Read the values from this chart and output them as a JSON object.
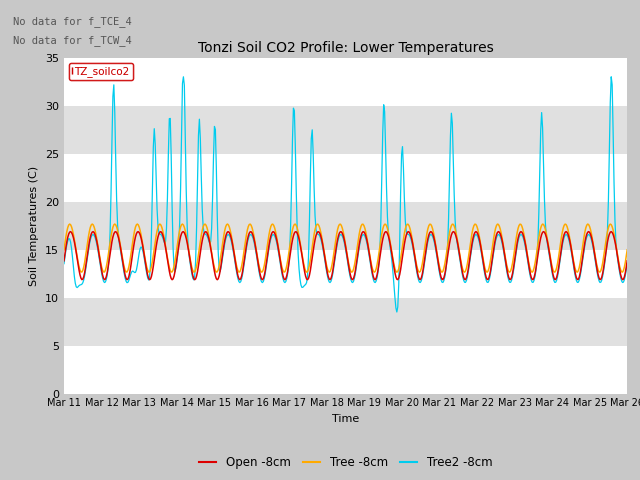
{
  "title": "Tonzi Soil CO2 Profile: Lower Temperatures",
  "ylabel": "Soil Temperatures (C)",
  "xlabel": "Time",
  "annotation1": "No data for f_TCE_4",
  "annotation2": "No data for f_TCW_4",
  "legend_label": "TZ_soilco2",
  "ylim": [
    0,
    35
  ],
  "xlim": [
    0,
    25
  ],
  "xtick_labels": [
    "Mar 11",
    "Mar 12",
    "Mar 13",
    "Mar 14",
    "Mar 15",
    "Mar 16",
    "Mar 17",
    "Mar 18",
    "Mar 19",
    "Mar 20",
    "Mar 21",
    "Mar 22",
    "Mar 23",
    "Mar 24",
    "Mar 25",
    "Mar 26"
  ],
  "line_labels": [
    "Open -8cm",
    "Tree -8cm",
    "Tree2 -8cm"
  ],
  "line_colors": [
    "#dd0000",
    "#ffaa00",
    "#00ccee"
  ],
  "band_colors": [
    "#ffffff",
    "#e0e0e0"
  ],
  "fig_bg": "#c8c8c8",
  "n_points": 600
}
